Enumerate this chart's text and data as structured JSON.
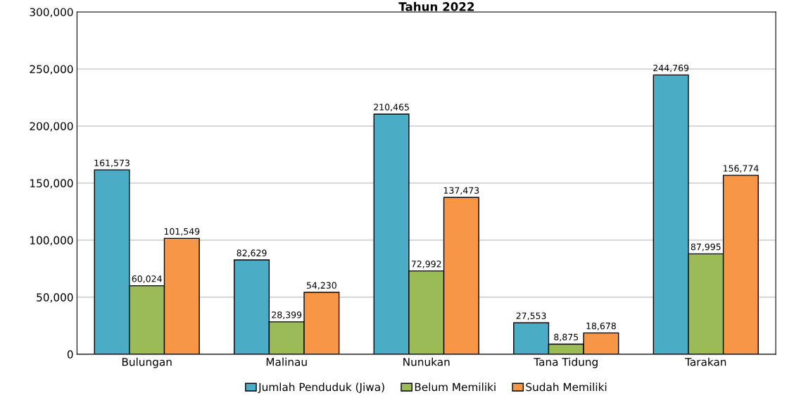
{
  "chart_data": {
    "type": "bar",
    "title": "Tahun 2022",
    "categories": [
      "Bulungan",
      "Malinau",
      "Nunukan",
      "Tana Tidung",
      "Tarakan"
    ],
    "series": [
      {
        "name": "Jumlah Penduduk (Jiwa)",
        "color": "#4bacc6",
        "values": [
          161573,
          82629,
          210465,
          27553,
          244769
        ],
        "value_labels": [
          "161,573",
          "82,629",
          "210,465",
          "27,553",
          "244,769"
        ]
      },
      {
        "name": "Belum Memiliki",
        "color": "#9bbb59",
        "values": [
          60024,
          28399,
          72992,
          8875,
          87995
        ],
        "value_labels": [
          "60,024",
          "28,399",
          "72,992",
          "8,875",
          "87,995"
        ]
      },
      {
        "name": "Sudah Memiliki",
        "color": "#f79646",
        "values": [
          101549,
          54230,
          137473,
          18678,
          156774
        ],
        "value_labels": [
          "101,549",
          "54,230",
          "137,473",
          "18,678",
          "156,774"
        ]
      }
    ],
    "ylim": [
      0,
      300000
    ],
    "yticks": [
      0,
      {
        "value": 50000,
        "label": "50,000"
      },
      {
        "value": 100000,
        "label": "100,000"
      },
      {
        "value": 150000,
        "label": "150,000"
      },
      {
        "value": 200000,
        "label": "200,000"
      },
      {
        "value": 250000,
        "label": "250,000"
      },
      {
        "value": 300000,
        "label": "300,000"
      }
    ],
    "grid": "y",
    "legend": "bottom"
  }
}
